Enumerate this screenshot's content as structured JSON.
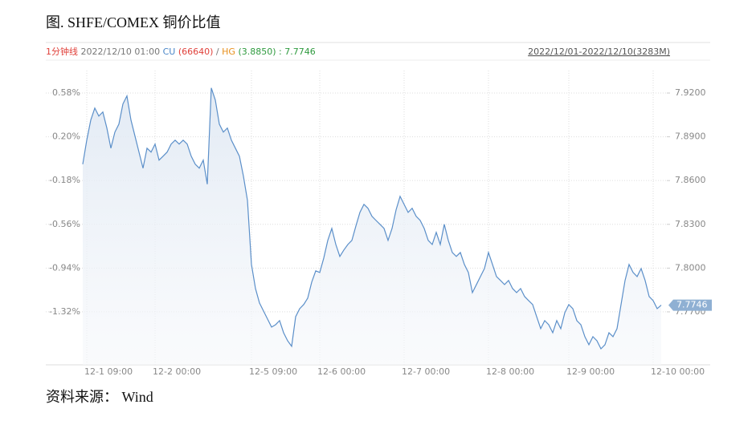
{
  "chart_data": {
    "type": "line",
    "title": "图. SHFE/COMEX 铜价比值",
    "source": "资料来源： Wind",
    "header": {
      "period": "1分钟线",
      "time": "2022/12/10 01:00",
      "cu_label": "CU",
      "cu_value": "(66640)",
      "sep": "/",
      "hg_label": "HG",
      "hg_value": "(3.8850)",
      "ratio": ": 7.7746",
      "range": "2022/12/01-2022/12/10(3283M)"
    },
    "last_value_label": "7.7746",
    "categories": [
      null,
      "12-1 09:00",
      null,
      null,
      null,
      null,
      null,
      null,
      null,
      null,
      null,
      null,
      null,
      null,
      null,
      null,
      null,
      null,
      "12-2 00:00",
      null,
      null,
      null,
      null,
      null,
      null,
      null,
      null,
      null,
      null,
      null,
      null,
      null,
      null,
      null,
      null,
      null,
      null,
      null,
      null,
      null,
      null,
      null,
      "12-5 09:00",
      null,
      null,
      null,
      null,
      null,
      null,
      null,
      null,
      null,
      null,
      null,
      null,
      null,
      null,
      null,
      null,
      "12-6 00:00",
      null,
      null,
      null,
      null,
      null,
      null,
      null,
      null,
      null,
      null,
      null,
      null,
      null,
      null,
      null,
      null,
      null,
      null,
      null,
      null,
      "12-7 00:00",
      null,
      null,
      null,
      null,
      null,
      null,
      null,
      null,
      null,
      null,
      null,
      null,
      null,
      null,
      null,
      null,
      null,
      null,
      null,
      null,
      "12-8 00:00",
      null,
      null,
      null,
      null,
      null,
      null,
      null,
      null,
      null,
      null,
      null,
      null,
      null,
      null,
      null,
      null,
      null,
      null,
      null,
      "12-9 00:00",
      null,
      null,
      null,
      null,
      null,
      null,
      null,
      null,
      null,
      null,
      null,
      null,
      null,
      null,
      null,
      null,
      null,
      null,
      null,
      null,
      "12-10 00:00",
      null,
      null
    ],
    "series": [
      {
        "axis": "y2",
        "color": "#5b8fc9",
        "values": [
          7.8712,
          7.8877,
          7.9015,
          7.9097,
          7.9042,
          7.907,
          7.896,
          7.8822,
          7.8932,
          7.8987,
          7.9125,
          7.918,
          7.9015,
          7.8905,
          7.8795,
          7.8685,
          7.8822,
          7.8795,
          7.885,
          7.874,
          7.8767,
          7.8795,
          7.885,
          7.8877,
          7.885,
          7.8877,
          7.885,
          7.8767,
          7.8712,
          7.8685,
          7.874,
          7.8575,
          7.9235,
          7.9152,
          7.8987,
          7.8932,
          7.896,
          7.8877,
          7.8822,
          7.8767,
          7.863,
          7.8465,
          7.8025,
          7.786,
          7.7761,
          7.7706,
          7.7651,
          7.7596,
          7.7612,
          7.764,
          7.7557,
          7.7502,
          7.7464,
          7.7667,
          7.7722,
          7.775,
          7.7794,
          7.7904,
          7.7981,
          7.797,
          7.8069,
          7.819,
          7.8272,
          7.8162,
          7.808,
          7.8124,
          7.8162,
          7.819,
          7.8289,
          7.8382,
          7.8437,
          7.841,
          7.8355,
          7.8327,
          7.83,
          7.8272,
          7.819,
          7.8272,
          7.8399,
          7.8492,
          7.8437,
          7.8382,
          7.841,
          7.8355,
          7.8327,
          7.8272,
          7.819,
          7.8162,
          7.8245,
          7.8162,
          7.83,
          7.819,
          7.8107,
          7.808,
          7.8107,
          7.8025,
          7.797,
          7.7832,
          7.7887,
          7.7942,
          7.7997,
          7.8107,
          7.8025,
          7.7942,
          7.7915,
          7.7887,
          7.7915,
          7.786,
          7.7832,
          7.786,
          7.7805,
          7.7777,
          7.775,
          7.7667,
          7.7585,
          7.764,
          7.7612,
          7.7557,
          7.764,
          7.7585,
          7.7694,
          7.775,
          7.7722,
          7.764,
          7.7612,
          7.753,
          7.7475,
          7.753,
          7.7502,
          7.7447,
          7.7475,
          7.7557,
          7.753,
          7.7585,
          7.775,
          7.7915,
          7.8025,
          7.797,
          7.7942,
          7.7997,
          7.7915,
          7.7805,
          7.7777,
          7.7722,
          7.7746
        ]
      }
    ],
    "ylim": [
      -1.78,
      0.775
    ],
    "yticks": [
      {
        "value": 0.58,
        "label": "0.58%"
      },
      {
        "value": 0.2,
        "label": "0.20%"
      },
      {
        "value": -0.18,
        "label": "-0.18%"
      },
      {
        "value": -0.56,
        "label": "-0.56%"
      },
      {
        "value": -0.94,
        "label": "-0.94%"
      },
      {
        "value": -1.32,
        "label": "-1.32%"
      }
    ],
    "y2lim": [
      7.7337,
      7.9354
    ],
    "y2ticks": [
      {
        "value": 7.92,
        "label": "7.9200"
      },
      {
        "value": 7.89,
        "label": "7.8900"
      },
      {
        "value": 7.86,
        "label": "7.8600"
      },
      {
        "value": 7.83,
        "label": "7.8300"
      },
      {
        "value": 7.8,
        "label": "7.8000"
      },
      {
        "value": 7.77,
        "label": "7.7700"
      }
    ],
    "grid": true
  }
}
